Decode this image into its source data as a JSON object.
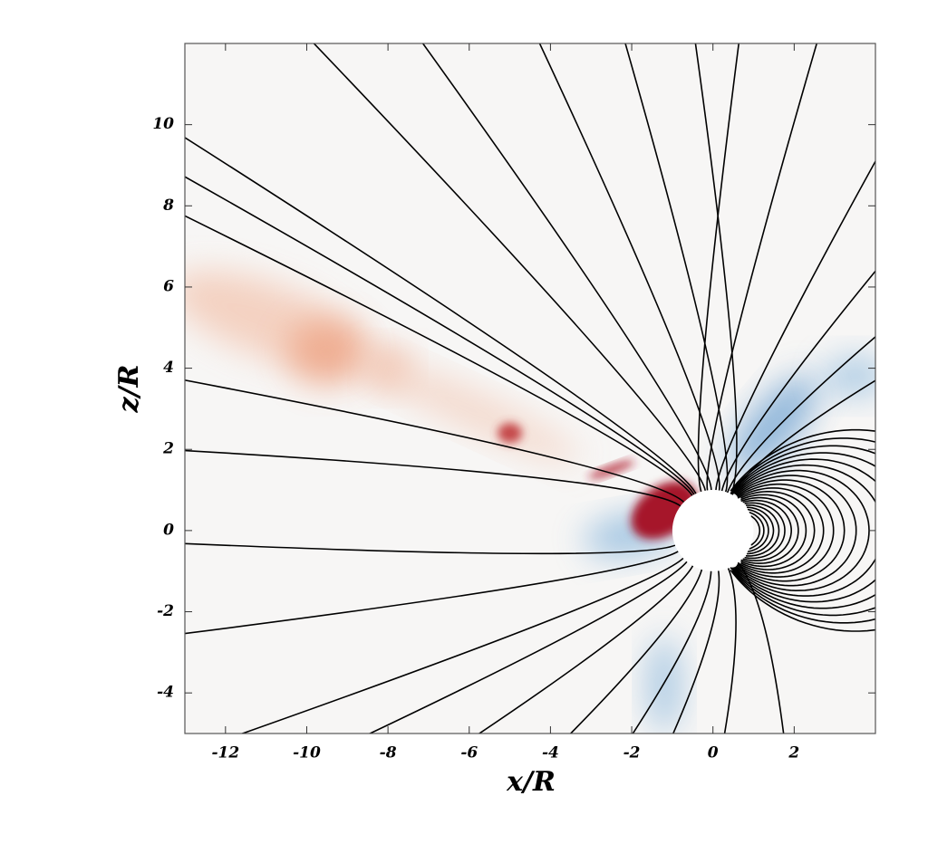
{
  "chart_data": {
    "type": "field",
    "xlabel": "x/R",
    "ylabel": "z/R",
    "xlim": [
      -13,
      4
    ],
    "ylim": [
      -5,
      12
    ],
    "xticks": [
      -12,
      -10,
      -8,
      -6,
      -4,
      -2,
      0,
      2
    ],
    "yticks": [
      -4,
      -2,
      0,
      2,
      4,
      6,
      8,
      10
    ]
  }
}
